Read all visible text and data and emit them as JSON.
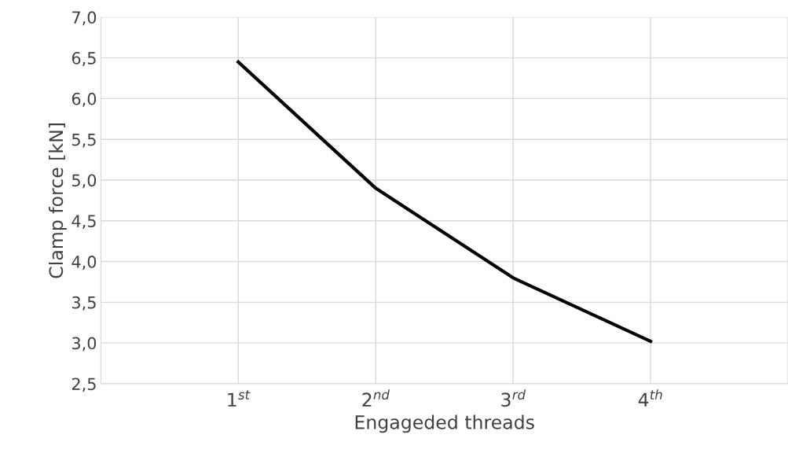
{
  "chart_data": {
    "type": "line",
    "xlabel": "Engageded threads",
    "ylabel": "Clamp force [kN]",
    "categories": [
      null,
      "1$^{st}$",
      "2$^{nd}$",
      "3$^{rd}$",
      "4$^{th}$",
      null
    ],
    "series": [
      {
        "color": "#000000",
        "values": [
          null,
          6.45,
          4.9,
          3.8,
          3.02,
          null
        ]
      }
    ],
    "ylim": [
      2.5,
      7.0
    ],
    "yticks": [
      {
        "value": 2.5,
        "label": "2,5"
      },
      {
        "value": 3.0,
        "label": "3,0"
      },
      {
        "value": 3.5,
        "label": "3,5"
      },
      {
        "value": 4.0,
        "label": "4,0"
      },
      {
        "value": 4.5,
        "label": "4,5"
      },
      {
        "value": 5.0,
        "label": "5,0"
      },
      {
        "value": 5.5,
        "label": "5,5"
      },
      {
        "value": 6.0,
        "label": "6,0"
      },
      {
        "value": 6.5,
        "label": "6,5"
      },
      {
        "value": 7.0,
        "label": "7,0"
      }
    ],
    "grid": true,
    "marker": "none",
    "line_style": "solid"
  }
}
